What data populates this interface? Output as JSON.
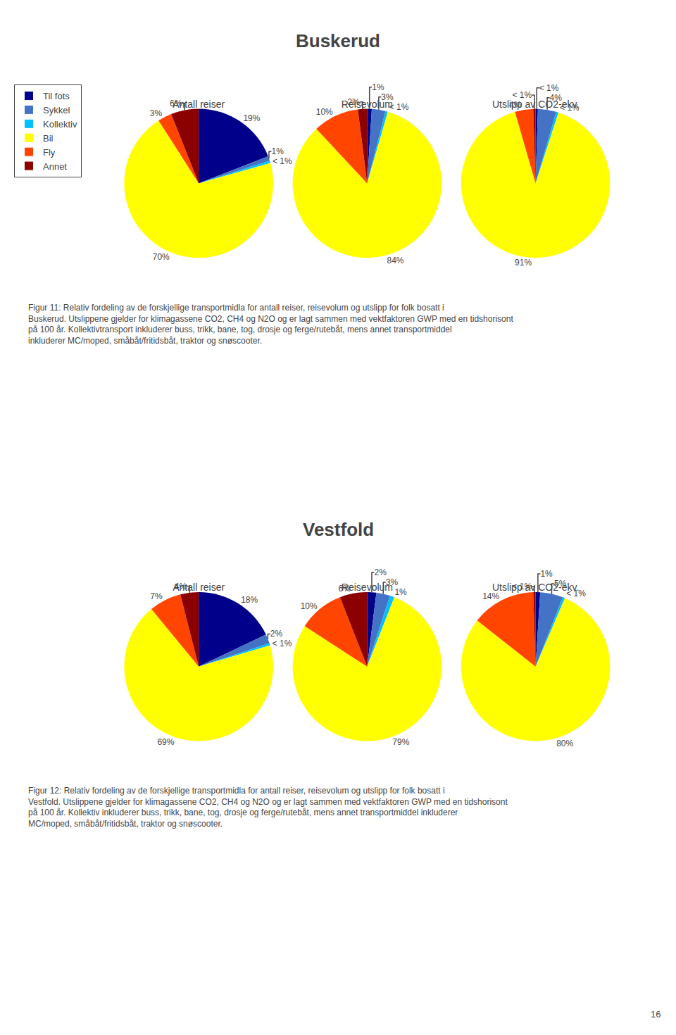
{
  "chart_data": [
    {
      "type": "pie",
      "title": "Buskerud",
      "categories": [
        "Til fots",
        "Sykkel",
        "Kollektiv",
        "Bil",
        "Fly",
        "Annet"
      ],
      "colors": [
        "#00008B",
        "#4472C4",
        "#00BFFF",
        "#FFFF00",
        "#FF4500",
        "#8B0000"
      ],
      "legend": "upper left",
      "series": [
        {
          "name": "Antall reiser",
          "values": [
            19,
            1,
            0.5,
            70,
            3,
            6
          ],
          "value_labels": [
            "19%",
            "1%",
            "< 1%",
            "70%",
            "3%",
            "6%"
          ]
        },
        {
          "name": "Reisevolum",
          "values": [
            1,
            3,
            0.5,
            84,
            10,
            2
          ],
          "value_labels": [
            "1%",
            "3%",
            "< 1%",
            "84%",
            "10%",
            "2%"
          ]
        },
        {
          "name": "Utslipp av CO2-ekv.",
          "values": [
            0.5,
            4,
            0.5,
            91,
            4,
            0.5
          ],
          "value_labels": [
            "< 1%",
            "4%",
            "< 1%",
            "91%",
            "4%",
            "< 1%"
          ]
        }
      ],
      "annotations": [
        "Figur 11: Relativ fordeling av de forskjellige transportmidla for antall reiser, reisevolum og utslipp for folk bosatt i Buskerud. Utslippene gjelder for klimagassene CO2, CH4 og N2O og er lagt sammen med vektfaktoren GWP med en tidshorisont på 100 år. Kollektivtransport inkluderer buss, trikk, bane, tog, drosje og ferge/rutebåt, mens annet transportmiddel inkluderer MC/moped, småbåt/fritidsbåt, traktor og snøscooter."
      ]
    },
    {
      "type": "pie",
      "title": "Vestfold",
      "categories": [
        "Til fots",
        "Sykkel",
        "Kollektiv",
        "Bil",
        "Fly",
        "Annet"
      ],
      "colors": [
        "#00008B",
        "#4472C4",
        "#00BFFF",
        "#FFFF00",
        "#FF4500",
        "#8B0000"
      ],
      "legend": "upper left",
      "series": [
        {
          "name": "Antall reiser",
          "values": [
            18,
            2,
            0.5,
            69,
            7,
            4
          ],
          "value_labels": [
            "18%",
            "2%",
            "< 1%",
            "69%",
            "7%",
            "4%"
          ]
        },
        {
          "name": "Reisevolum",
          "values": [
            2,
            3,
            1,
            79,
            10,
            6
          ],
          "value_labels": [
            "2%",
            "3%",
            "1%",
            "79%",
            "10%",
            "6%"
          ]
        },
        {
          "name": "Utslipp av CO2-ekv.",
          "values": [
            1,
            5,
            0.5,
            80,
            14,
            0.5
          ],
          "value_labels": [
            "1%",
            "5%",
            "< 1%",
            "80%",
            "14%",
            "< 1%"
          ]
        }
      ],
      "annotations": [
        "Figur 12: Relativ fordeling av de forskjellige transportmidla for antall reiser, reisevolum og utslipp for folk bosatt i Vestfold. Utslippene gjelder for klimagassene CO2, CH4 og N2O og er lagt sammen med vektfaktoren GWP med en tidshorisont på 100 år. Kollektiv inkluderer buss, trikk, bane, tog, drosje og ferge/rutebåt, mens annet transportmiddel inkluderer MC/moped, småbåt/fritidsbåt, traktor og snøscooter.",
        "16"
      ]
    }
  ]
}
